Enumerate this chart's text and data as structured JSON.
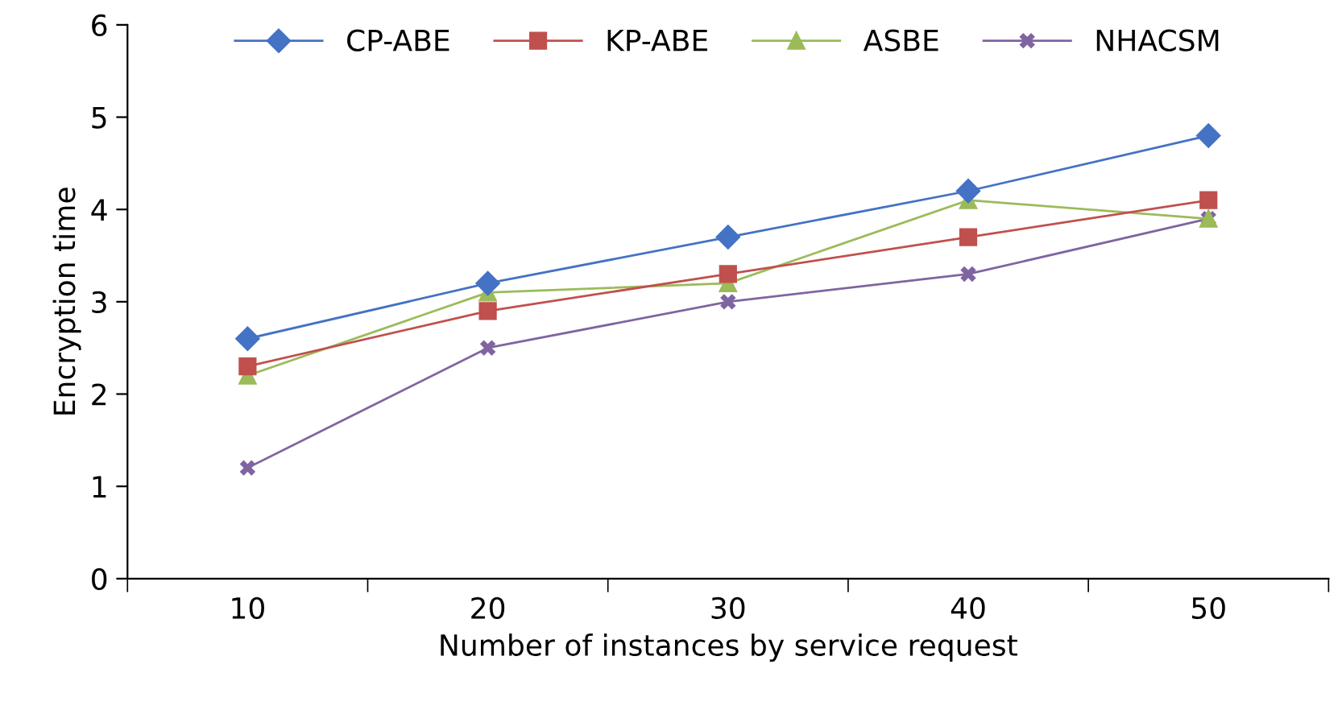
{
  "chart_data": {
    "type": "line",
    "xlabel": "Number of instances by service request",
    "ylabel": "Encryption time",
    "categories": [
      "10",
      "20",
      "30",
      "40",
      "50"
    ],
    "series": [
      {
        "name": "CP-ABE",
        "color": "#4472c4",
        "marker": "diamond",
        "values": [
          2.6,
          3.2,
          3.7,
          4.2,
          4.8
        ]
      },
      {
        "name": "KP-ABE",
        "color": "#c0504d",
        "marker": "square",
        "values": [
          2.3,
          2.9,
          3.3,
          3.7,
          4.1
        ]
      },
      {
        "name": "ASBE",
        "color": "#9bbb59",
        "marker": "triangle",
        "values": [
          2.2,
          3.1,
          3.2,
          4.1,
          3.9
        ]
      },
      {
        "name": "NHACSM",
        "color": "#8064a2",
        "marker": "cross",
        "values": [
          1.2,
          2.5,
          3.0,
          3.3,
          3.9
        ]
      }
    ],
    "ylim": [
      0,
      6
    ],
    "yticks": [
      0,
      1,
      2,
      3,
      4,
      5,
      6
    ],
    "grid": false,
    "legend": "top",
    "line_style": "solid"
  }
}
